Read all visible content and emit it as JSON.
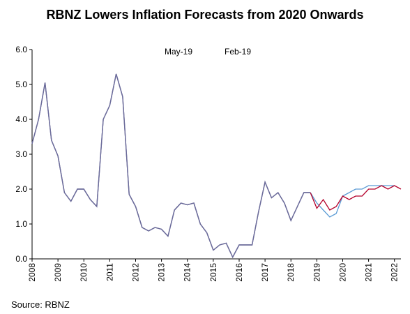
{
  "title": "RBNZ Lowers Inflation Forecasts from 2020 Onwards",
  "source": "Source: RBNZ",
  "chart_data": {
    "type": "line",
    "title": "RBNZ Lowers Inflation Forecasts from 2020 Onwards",
    "xlabel": "",
    "ylabel": "",
    "xlim": [
      2008.0,
      2022.25
    ],
    "ylim": [
      0.0,
      6.0
    ],
    "yticks": [
      "0.0",
      "1.0",
      "2.0",
      "3.0",
      "4.0",
      "5.0",
      "6.0"
    ],
    "xticks": [
      "2008",
      "2009",
      "2010",
      "2011",
      "2012",
      "2013",
      "2014",
      "2015",
      "2016",
      "2017",
      "2018",
      "2019",
      "2020",
      "2021",
      "2022"
    ],
    "legend_position": "top-center",
    "series": [
      {
        "name": "May-19",
        "color": "#b4002a",
        "points": [
          [
            2008.0,
            3.3
          ],
          [
            2008.25,
            4.0
          ],
          [
            2008.5,
            5.05
          ],
          [
            2008.75,
            3.4
          ],
          [
            2009.0,
            2.95
          ],
          [
            2009.25,
            1.9
          ],
          [
            2009.5,
            1.65
          ],
          [
            2009.75,
            2.0
          ],
          [
            2010.0,
            2.0
          ],
          [
            2010.25,
            1.7
          ],
          [
            2010.5,
            1.5
          ],
          [
            2010.75,
            4.0
          ],
          [
            2011.0,
            4.4
          ],
          [
            2011.25,
            5.3
          ],
          [
            2011.5,
            4.65
          ],
          [
            2011.75,
            1.85
          ],
          [
            2012.0,
            1.5
          ],
          [
            2012.25,
            0.9
          ],
          [
            2012.5,
            0.8
          ],
          [
            2012.75,
            0.9
          ],
          [
            2013.0,
            0.85
          ],
          [
            2013.25,
            0.65
          ],
          [
            2013.5,
            1.4
          ],
          [
            2013.75,
            1.6
          ],
          [
            2014.0,
            1.55
          ],
          [
            2014.25,
            1.6
          ],
          [
            2014.5,
            1.0
          ],
          [
            2014.75,
            0.75
          ],
          [
            2015.0,
            0.25
          ],
          [
            2015.25,
            0.4
          ],
          [
            2015.5,
            0.45
          ],
          [
            2015.75,
            0.05
          ],
          [
            2016.0,
            0.4
          ],
          [
            2016.25,
            0.4
          ],
          [
            2016.5,
            0.4
          ],
          [
            2016.75,
            1.35
          ],
          [
            2017.0,
            2.2
          ],
          [
            2017.25,
            1.75
          ],
          [
            2017.5,
            1.9
          ],
          [
            2017.75,
            1.6
          ],
          [
            2018.0,
            1.1
          ],
          [
            2018.25,
            1.5
          ],
          [
            2018.5,
            1.9
          ],
          [
            2018.75,
            1.9
          ],
          [
            2019.0,
            1.45
          ],
          [
            2019.25,
            1.7
          ],
          [
            2019.5,
            1.4
          ],
          [
            2019.75,
            1.5
          ],
          [
            2020.0,
            1.8
          ],
          [
            2020.25,
            1.7
          ],
          [
            2020.5,
            1.8
          ],
          [
            2020.75,
            1.8
          ],
          [
            2021.0,
            2.0
          ],
          [
            2021.25,
            2.0
          ],
          [
            2021.5,
            2.1
          ],
          [
            2021.75,
            2.0
          ],
          [
            2022.0,
            2.1
          ],
          [
            2022.25,
            2.0
          ]
        ]
      },
      {
        "name": "Feb-19",
        "color": "#5b9bd5",
        "points": [
          [
            2008.0,
            3.3
          ],
          [
            2008.25,
            4.0
          ],
          [
            2008.5,
            5.05
          ],
          [
            2008.75,
            3.4
          ],
          [
            2009.0,
            2.95
          ],
          [
            2009.25,
            1.9
          ],
          [
            2009.5,
            1.65
          ],
          [
            2009.75,
            2.0
          ],
          [
            2010.0,
            2.0
          ],
          [
            2010.25,
            1.7
          ],
          [
            2010.5,
            1.5
          ],
          [
            2010.75,
            4.0
          ],
          [
            2011.0,
            4.4
          ],
          [
            2011.25,
            5.3
          ],
          [
            2011.5,
            4.65
          ],
          [
            2011.75,
            1.85
          ],
          [
            2012.0,
            1.5
          ],
          [
            2012.25,
            0.9
          ],
          [
            2012.5,
            0.8
          ],
          [
            2012.75,
            0.9
          ],
          [
            2013.0,
            0.85
          ],
          [
            2013.25,
            0.65
          ],
          [
            2013.5,
            1.4
          ],
          [
            2013.75,
            1.6
          ],
          [
            2014.0,
            1.55
          ],
          [
            2014.25,
            1.6
          ],
          [
            2014.5,
            1.0
          ],
          [
            2014.75,
            0.75
          ],
          [
            2015.0,
            0.25
          ],
          [
            2015.25,
            0.4
          ],
          [
            2015.5,
            0.45
          ],
          [
            2015.75,
            0.05
          ],
          [
            2016.0,
            0.4
          ],
          [
            2016.25,
            0.4
          ],
          [
            2016.5,
            0.4
          ],
          [
            2016.75,
            1.35
          ],
          [
            2017.0,
            2.2
          ],
          [
            2017.25,
            1.75
          ],
          [
            2017.5,
            1.9
          ],
          [
            2017.75,
            1.6
          ],
          [
            2018.0,
            1.1
          ],
          [
            2018.25,
            1.5
          ],
          [
            2018.5,
            1.9
          ],
          [
            2018.75,
            1.9
          ],
          [
            2019.0,
            1.6
          ],
          [
            2019.25,
            1.4
          ],
          [
            2019.5,
            1.2
          ],
          [
            2019.75,
            1.3
          ],
          [
            2020.0,
            1.8
          ],
          [
            2020.25,
            1.9
          ],
          [
            2020.5,
            2.0
          ],
          [
            2020.75,
            2.0
          ],
          [
            2021.0,
            2.1
          ],
          [
            2021.25,
            2.1
          ],
          [
            2021.5,
            2.1
          ],
          [
            2021.75,
            2.1
          ],
          [
            2022.0,
            2.1
          ]
        ]
      }
    ],
    "history_color": "#6b6b9a",
    "forecast_start": 2018.75
  }
}
